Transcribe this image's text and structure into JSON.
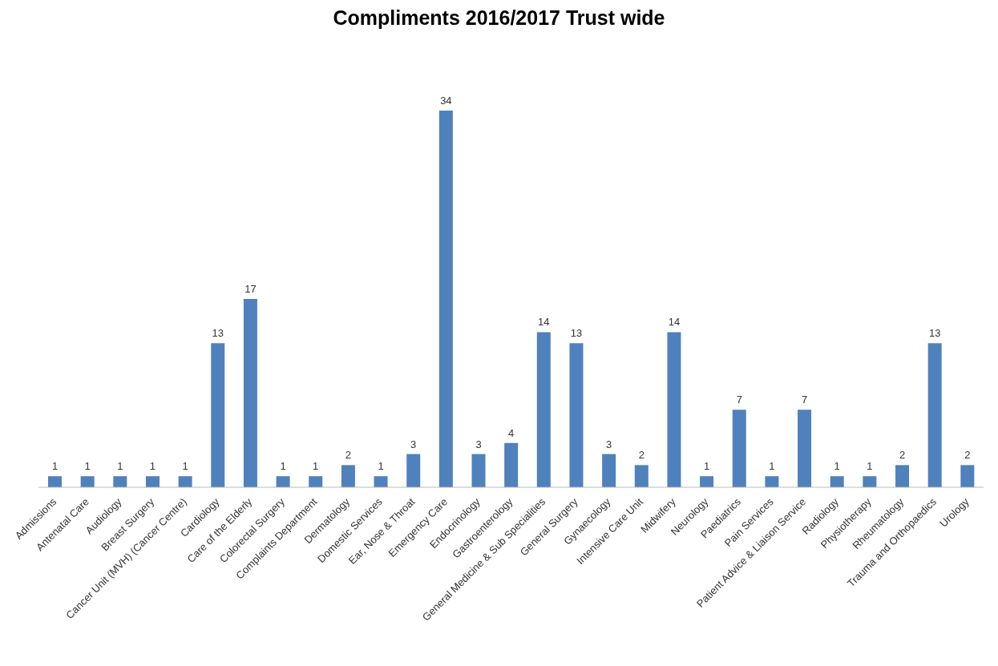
{
  "chart_data": {
    "type": "bar",
    "title": "Compliments 2016/2017 Trust wide",
    "categories": [
      "Admissions",
      "Antenatal Care",
      "Audiology",
      "Breast Surgery",
      "Cancer Unit (MVH) (Cancer Centre)",
      "Cardiology",
      "Care of the Elderly",
      "Colorectal Surgery",
      "Complaints Department",
      "Dermatology",
      "Domestic Services",
      "Ear, Nose & Throat",
      "Emergency Care",
      "Endocrinology",
      "Gastroenterology",
      "General Medicine & Sub Specialities",
      "General Surgery",
      "Gynaecology",
      "Intensive Care Unit",
      "Midwifery",
      "Neurology",
      "Paediatrics",
      "Pain Services",
      "Patient Advice & Liaison Service",
      "Radiology",
      "Physiotherapy",
      "Rheumatology",
      "Trauma and Orthopaedics",
      "Urology"
    ],
    "values": [
      1,
      1,
      1,
      1,
      1,
      13,
      17,
      1,
      1,
      2,
      1,
      3,
      34,
      3,
      4,
      14,
      13,
      3,
      2,
      14,
      1,
      7,
      1,
      7,
      1,
      1,
      2,
      13,
      2
    ],
    "color": "#4f81bd",
    "data_labels": true,
    "grid": false,
    "legend": false
  }
}
